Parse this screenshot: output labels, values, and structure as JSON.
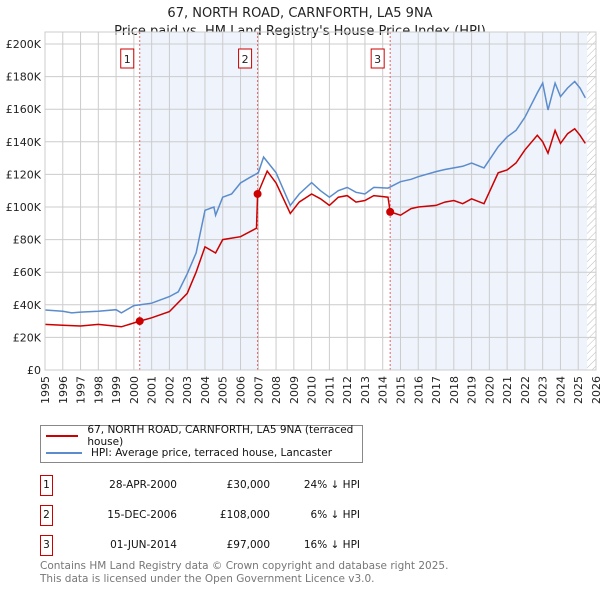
{
  "chart_data": {
    "type": "line",
    "title": "67, NORTH ROAD, CARNFORTH, LA5 9NA",
    "subtitle": "Price paid vs. HM Land Registry's House Price Index (HPI)",
    "xlim": [
      1995,
      2026
    ],
    "ylim": [
      0,
      200000
    ],
    "x_ticks": [
      "1995",
      "1996",
      "1997",
      "1998",
      "1999",
      "2000",
      "2001",
      "2002",
      "2003",
      "2004",
      "2005",
      "2006",
      "2007",
      "2008",
      "2009",
      "2010",
      "2011",
      "2012",
      "2013",
      "2014",
      "2015",
      "2016",
      "2017",
      "2018",
      "2019",
      "2020",
      "2021",
      "2022",
      "2023",
      "2024",
      "2025",
      "2026"
    ],
    "y_ticks": [
      {
        "v": 0,
        "label": "£0"
      },
      {
        "v": 20000,
        "label": "£20K"
      },
      {
        "v": 40000,
        "label": "£40K"
      },
      {
        "v": 60000,
        "label": "£60K"
      },
      {
        "v": 80000,
        "label": "£80K"
      },
      {
        "v": 100000,
        "label": "£100K"
      },
      {
        "v": 120000,
        "label": "£120K"
      },
      {
        "v": 140000,
        "label": "£140K"
      },
      {
        "v": 160000,
        "label": "£160K"
      },
      {
        "v": 180000,
        "label": "£180K"
      },
      {
        "v": 200000,
        "label": "£200K"
      }
    ],
    "grid": true,
    "series": [
      {
        "name": "67, NORTH ROAD, CARNFORTH, LA5 9NA (terraced house)",
        "color": "#cc0000",
        "x": [
          1995,
          1996,
          1997,
          1998,
          1999.3,
          2000.33,
          2001,
          2002,
          2003,
          2003.5,
          2004,
          2004.6,
          2005,
          2006,
          2006.9,
          2006.96,
          2007.5,
          2008,
          2008.8,
          2009.3,
          2010,
          2010.5,
          2011,
          2011.5,
          2012,
          2012.5,
          2013,
          2013.5,
          2014.3,
          2014.42,
          2015,
          2015.6,
          2016,
          2017,
          2017.5,
          2018,
          2018.5,
          2019,
          2019.7,
          2020.5,
          2021,
          2021.5,
          2022,
          2022.7,
          2023,
          2023.3,
          2023.7,
          2024,
          2024.4,
          2024.8,
          2025.1,
          2025.4
        ],
        "y": [
          28000,
          27500,
          27000,
          28000,
          26500,
          30000,
          32000,
          35800,
          47000,
          60000,
          75600,
          71800,
          80000,
          81800,
          87000,
          108000,
          122000,
          114700,
          96000,
          103000,
          108000,
          105000,
          101000,
          106000,
          107000,
          103000,
          104000,
          107000,
          106000,
          97000,
          95000,
          99000,
          100000,
          101000,
          103000,
          104000,
          102000,
          105000,
          102000,
          121000,
          122700,
          127000,
          135000,
          144000,
          140000,
          133000,
          147000,
          139000,
          145000,
          148000,
          144000,
          139000
        ]
      },
      {
        "name": "HPI: Average price, terraced house, Lancaster",
        "color": "#5b8ccc",
        "x": [
          1995,
          1996,
          1996.5,
          1997,
          1998,
          1999,
          1999.3,
          2000,
          2001,
          2002,
          2002.5,
          2003,
          2003.5,
          2004,
          2004.5,
          2004.6,
          2005,
          2005.5,
          2006,
          2006.5,
          2007,
          2007.3,
          2008,
          2008.8,
          2009.3,
          2010,
          2010.5,
          2011,
          2011.5,
          2012,
          2012.5,
          2013,
          2013.5,
          2014.3,
          2015,
          2015.6,
          2016,
          2017,
          2017.5,
          2018,
          2018.5,
          2019,
          2019.7,
          2020.5,
          2021,
          2021.5,
          2022,
          2022.7,
          2023,
          2023.3,
          2023.7,
          2024,
          2024.4,
          2024.8,
          2025.1,
          2025.4
        ],
        "y": [
          36800,
          36000,
          35000,
          35500,
          36000,
          37000,
          35000,
          39500,
          41000,
          45000,
          48000,
          59000,
          71800,
          98000,
          100000,
          95000,
          106000,
          108000,
          114700,
          118000,
          121000,
          130600,
          121000,
          101000,
          108000,
          115000,
          110000,
          106000,
          110000,
          112000,
          109000,
          108000,
          112000,
          111600,
          115500,
          117000,
          118600,
          121700,
          123000,
          124000,
          125000,
          127000,
          124000,
          137000,
          143000,
          147000,
          155000,
          170000,
          176000,
          159500,
          176000,
          167700,
          173000,
          177000,
          173000,
          167000
        ]
      }
    ],
    "sales": [
      {
        "n": "1",
        "x": 2000.33,
        "price": 30000
      },
      {
        "n": "2",
        "x": 2006.96,
        "price": 108000
      },
      {
        "n": "3",
        "x": 2014.42,
        "price": 97000
      }
    ],
    "shaded_ranges": [
      [
        2000.33,
        2006.96
      ],
      [
        2014.42,
        2025.5
      ]
    ],
    "hatched_from": 2025.5
  },
  "legend": {
    "property": "67, NORTH ROAD, CARNFORTH, LA5 9NA (terraced house)",
    "hpi": "HPI: Average price, terraced house, Lancaster"
  },
  "table": [
    {
      "n": "1",
      "date": "28-APR-2000",
      "price": "£30,000",
      "hpi": "24% ↓ HPI"
    },
    {
      "n": "2",
      "date": "15-DEC-2006",
      "price": "£108,000",
      "hpi": "6% ↓ HPI"
    },
    {
      "n": "3",
      "date": "01-JUN-2014",
      "price": "£97,000",
      "hpi": "16% ↓ HPI"
    }
  ],
  "footer": {
    "line1": "Contains HM Land Registry data © Crown copyright and database right 2025.",
    "line2": "This data is licensed under the Open Government Licence v3.0."
  }
}
